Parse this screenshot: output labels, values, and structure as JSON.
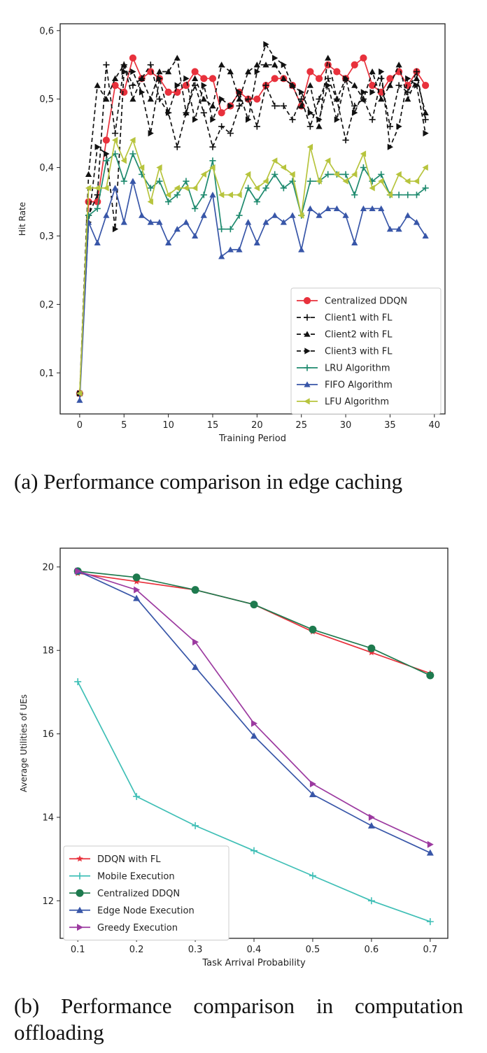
{
  "captions": {
    "a": "(a) Performance comparison in edge caching",
    "b": "(b) Performance comparison in computation offloading"
  },
  "chart_data": [
    {
      "type": "line",
      "title": "",
      "xlabel": "Training Period",
      "ylabel": "Hit Rate",
      "xlim": [
        -2.2,
        41.2
      ],
      "ylim": [
        0.04,
        0.61
      ],
      "xticks": [
        0,
        5,
        10,
        15,
        20,
        25,
        30,
        35,
        40
      ],
      "yticks": [
        0.1,
        0.2,
        0.3,
        0.4,
        0.5,
        0.6
      ],
      "xtick_labels": [
        "0",
        "5",
        "10",
        "15",
        "20",
        "25",
        "30",
        "35",
        "40"
      ],
      "ytick_labels": [
        "0,1",
        "0,2",
        "0,3",
        "0,4",
        "0,5",
        "0,6"
      ],
      "legend_position": "bottom-right",
      "x": [
        0,
        1,
        2,
        3,
        4,
        5,
        6,
        7,
        8,
        9,
        10,
        11,
        12,
        13,
        14,
        15,
        16,
        17,
        18,
        19,
        20,
        21,
        22,
        23,
        24,
        25,
        26,
        27,
        28,
        29,
        30,
        31,
        32,
        33,
        34,
        35,
        36,
        37,
        38,
        39
      ],
      "series": [
        {
          "name": "Centralized DDQN",
          "color": "#e8313c",
          "marker": "circle",
          "dash": false,
          "values": [
            0.07,
            0.35,
            0.35,
            0.44,
            0.52,
            0.51,
            0.56,
            0.53,
            0.54,
            0.53,
            0.51,
            0.51,
            0.52,
            0.54,
            0.53,
            0.53,
            0.48,
            0.49,
            0.51,
            0.5,
            0.5,
            0.52,
            0.53,
            0.53,
            0.52,
            0.49,
            0.54,
            0.53,
            0.55,
            0.54,
            0.53,
            0.55,
            0.56,
            0.52,
            0.51,
            0.53,
            0.54,
            0.52,
            0.54,
            0.52
          ]
        },
        {
          "name": "Client1 with FL",
          "color": "#111111",
          "marker": "plus",
          "dash": true,
          "values": [
            0.07,
            0.33,
            0.36,
            0.55,
            0.45,
            0.55,
            0.52,
            0.53,
            0.55,
            0.5,
            0.48,
            0.43,
            0.48,
            0.52,
            0.48,
            0.43,
            0.46,
            0.45,
            0.49,
            0.5,
            0.46,
            0.52,
            0.49,
            0.49,
            0.47,
            0.5,
            0.46,
            0.5,
            0.53,
            0.5,
            0.44,
            0.49,
            0.5,
            0.47,
            0.53,
            0.46,
            0.52,
            0.51,
            0.54,
            0.47
          ]
        },
        {
          "name": "Client2 with FL",
          "color": "#111111",
          "marker": "triangle-up",
          "dash": true,
          "values": [
            0.07,
            0.39,
            0.52,
            0.5,
            0.53,
            0.55,
            0.5,
            0.53,
            0.5,
            0.54,
            0.54,
            0.56,
            0.48,
            0.53,
            0.5,
            0.49,
            0.55,
            0.54,
            0.5,
            0.54,
            0.55,
            0.55,
            0.55,
            0.53,
            0.52,
            0.49,
            0.52,
            0.46,
            0.56,
            0.5,
            0.53,
            0.52,
            0.5,
            0.54,
            0.5,
            0.52,
            0.55,
            0.5,
            0.53,
            0.48
          ]
        },
        {
          "name": "Client3 with FL",
          "color": "#111111",
          "marker": "triangle-right",
          "dash": true,
          "values": [
            0.07,
            0.32,
            0.43,
            0.42,
            0.31,
            0.54,
            0.54,
            0.51,
            0.45,
            0.53,
            0.48,
            0.52,
            0.53,
            0.47,
            0.52,
            0.47,
            0.5,
            0.49,
            0.51,
            0.47,
            0.54,
            0.58,
            0.56,
            0.55,
            0.52,
            0.51,
            0.48,
            0.47,
            0.52,
            0.47,
            0.53,
            0.48,
            0.51,
            0.51,
            0.54,
            0.43,
            0.46,
            0.53,
            0.52,
            0.45
          ]
        },
        {
          "name": "LRU Algorithm",
          "color": "#1e8a6e",
          "marker": "plus",
          "dash": false,
          "values": [
            0.07,
            0.33,
            0.34,
            0.41,
            0.42,
            0.38,
            0.42,
            0.39,
            0.37,
            0.38,
            0.35,
            0.36,
            0.38,
            0.34,
            0.36,
            0.41,
            0.31,
            0.31,
            0.33,
            0.37,
            0.35,
            0.37,
            0.39,
            0.37,
            0.38,
            0.33,
            0.38,
            0.38,
            0.39,
            0.39,
            0.39,
            0.36,
            0.4,
            0.38,
            0.39,
            0.36,
            0.36,
            0.36,
            0.36,
            0.37
          ]
        },
        {
          "name": "FIFO Algorithm",
          "color": "#3856a8",
          "marker": "triangle-up",
          "dash": false,
          "values": [
            0.06,
            0.32,
            0.29,
            0.33,
            0.37,
            0.32,
            0.38,
            0.33,
            0.32,
            0.32,
            0.29,
            0.31,
            0.32,
            0.3,
            0.33,
            0.36,
            0.27,
            0.28,
            0.28,
            0.32,
            0.29,
            0.32,
            0.33,
            0.32,
            0.33,
            0.28,
            0.34,
            0.33,
            0.34,
            0.34,
            0.33,
            0.29,
            0.34,
            0.34,
            0.34,
            0.31,
            0.31,
            0.33,
            0.32,
            0.3
          ]
        },
        {
          "name": "LFU Algorithm",
          "color": "#b7c43d",
          "marker": "triangle-left",
          "dash": false,
          "values": [
            0.07,
            0.37,
            0.37,
            0.37,
            0.44,
            0.41,
            0.44,
            0.4,
            0.35,
            0.4,
            0.36,
            0.37,
            0.37,
            0.37,
            0.39,
            0.4,
            0.36,
            0.36,
            0.36,
            0.39,
            0.37,
            0.38,
            0.41,
            0.4,
            0.39,
            0.33,
            0.43,
            0.38,
            0.41,
            0.39,
            0.38,
            0.39,
            0.42,
            0.37,
            0.38,
            0.36,
            0.39,
            0.38,
            0.38,
            0.4
          ]
        }
      ]
    },
    {
      "type": "line",
      "title": "",
      "xlabel": "Task Arrival Probability",
      "ylabel": "Average Utilities of UEs",
      "xlim": [
        0.07,
        0.73
      ],
      "ylim": [
        11.1,
        20.45
      ],
      "xticks": [
        0.1,
        0.2,
        0.3,
        0.4,
        0.5,
        0.6,
        0.7
      ],
      "yticks": [
        12,
        14,
        16,
        18,
        20
      ],
      "xtick_labels": [
        "0.1",
        "0.2",
        "0.3",
        "0.4",
        "0.5",
        "0.6",
        "0.7"
      ],
      "ytick_labels": [
        "12",
        "14",
        "16",
        "18",
        "20"
      ],
      "legend_position": "bottom-left",
      "x": [
        0.1,
        0.2,
        0.3,
        0.4,
        0.5,
        0.6,
        0.7
      ],
      "series": [
        {
          "name": "DDQN with FL",
          "color": "#e8313c",
          "marker": "star",
          "values": [
            19.85,
            19.65,
            19.45,
            19.1,
            18.45,
            17.95,
            17.45
          ]
        },
        {
          "name": "Mobile Execution",
          "color": "#3fbfb6",
          "marker": "plus",
          "values": [
            17.25,
            14.5,
            13.8,
            13.2,
            12.6,
            12.0,
            11.5
          ]
        },
        {
          "name": "Centralized DDQN",
          "color": "#1e7a4e",
          "marker": "circle",
          "values": [
            19.9,
            19.75,
            19.45,
            19.1,
            18.5,
            18.05,
            17.4
          ]
        },
        {
          "name": "Edge Node Execution",
          "color": "#3856a8",
          "marker": "triangle-up",
          "values": [
            19.9,
            19.25,
            17.6,
            15.95,
            14.55,
            13.8,
            13.15
          ]
        },
        {
          "name": "Greedy Execution",
          "color": "#9c3aa0",
          "marker": "triangle-right",
          "values": [
            19.9,
            19.45,
            18.2,
            16.25,
            14.8,
            14.0,
            13.35
          ]
        }
      ]
    }
  ]
}
